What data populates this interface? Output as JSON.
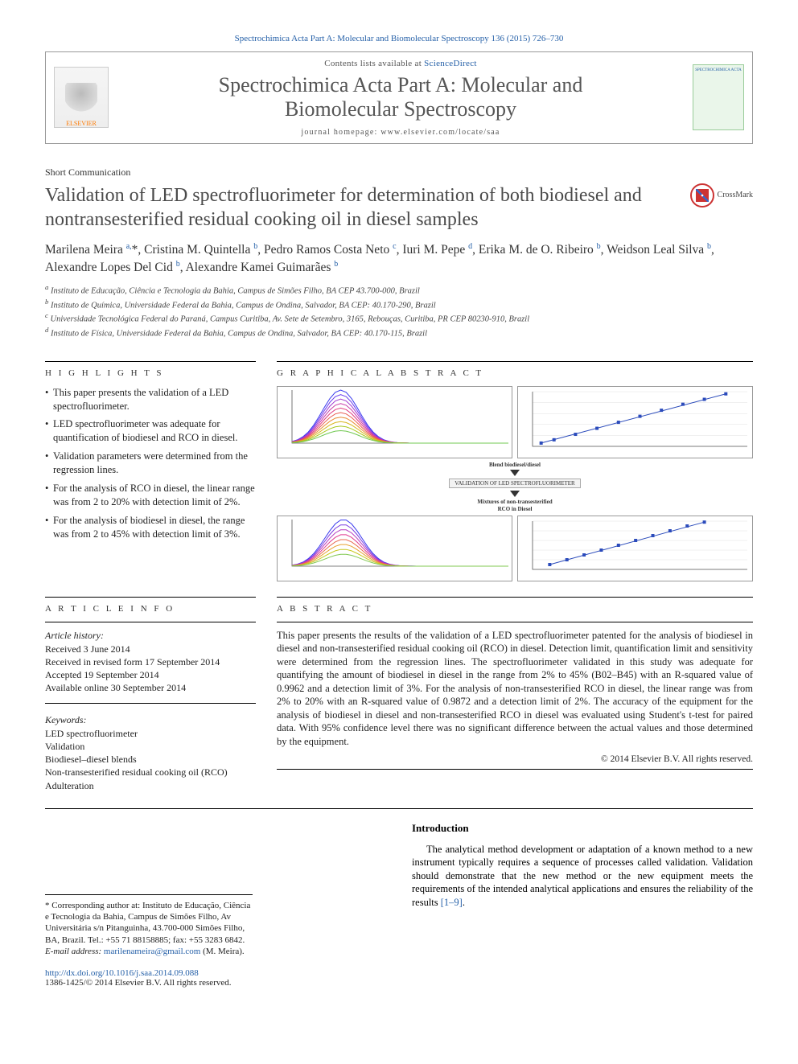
{
  "citation": "Spectrochimica Acta Part A: Molecular and Biomolecular Spectroscopy 136 (2015) 726–730",
  "header": {
    "contents_prefix": "Contents lists available at ",
    "contents_link": "ScienceDirect",
    "journal_line1": "Spectrochimica Acta Part A: Molecular and",
    "journal_line2": "Biomolecular Spectroscopy",
    "homepage": "journal homepage: www.elsevier.com/locate/saa",
    "publisher": "ELSEVIER",
    "cover_text": "SPECTROCHIMICA ACTA"
  },
  "article_type": "Short Communication",
  "title": "Validation of LED spectrofluorimeter for determination of both biodiesel and nontransesterified residual cooking oil in diesel samples",
  "crossmark_label": "CrossMark",
  "authors_html": "Marilena Meira <sup>a,</sup>*, Cristina M. Quintella <sup>b</sup>, Pedro Ramos Costa Neto <sup>c</sup>, Iuri M. Pepe <sup>d</sup>, Erika M. de O. Ribeiro <sup>b</sup>, Weidson Leal Silva <sup>b</sup>, Alexandre Lopes Del Cid <sup>b</sup>, Alexandre Kamei Guimarães <sup>b</sup>",
  "affiliations": [
    "a Instituto de Educação, Ciência e Tecnologia da Bahia, Campus de Simões Filho, BA CEP 43.700-000, Brazil",
    "b Instituto de Química, Universidade Federal da Bahia, Campus de Ondina, Salvador, BA CEP: 40.170-290, Brazil",
    "c Universidade Tecnológica Federal do Paraná, Campus Curitiba, Av. Sete de Setembro, 3165, Rebouças, Curitiba, PR CEP 80230-910, Brazil",
    "d Instituto de Física, Universidade Federal da Bahia, Campus de Ondina, Salvador, BA CEP: 40.170-115, Brazil"
  ],
  "headings": {
    "highlights": "H I G H L I G H T S",
    "graphical_abstract": "G R A P H I C A L  A B S T R A C T",
    "article_info": "A R T I C L E  I N F O",
    "abstract": "A B S T R A C T"
  },
  "highlights": [
    "This paper presents the validation of a LED spectrofluorimeter.",
    "LED spectrofluorimeter was adequate for quantification of biodiesel and RCO in diesel.",
    "Validation parameters were determined from the regression lines.",
    "For the analysis of RCO in diesel, the linear range was from 2 to 20% with detection limit of 2%.",
    "For the analysis of biodiesel in diesel, the range was from 2 to 45% with detection limit of 3%."
  ],
  "graphical_abstract": {
    "panels": [
      {
        "type": "spectrum",
        "title": "",
        "x_range": [
          350,
          750
        ],
        "y_range": [
          0,
          1.0
        ],
        "peak_x": 440,
        "curves_count": 10,
        "palette": [
          "#3a3aee",
          "#6a3aee",
          "#a23ad0",
          "#c83aa8",
          "#e03a80",
          "#e85a50",
          "#e88a30",
          "#d8b820",
          "#a8c820",
          "#70c850"
        ],
        "bg": "#ffffff",
        "axis_color": "#555555"
      },
      {
        "type": "linear",
        "title": "",
        "x_range": [
          0,
          50
        ],
        "y_range": [
          0,
          1.0
        ],
        "points": [
          [
            2,
            0.06
          ],
          [
            5,
            0.12
          ],
          [
            10,
            0.22
          ],
          [
            15,
            0.33
          ],
          [
            20,
            0.44
          ],
          [
            25,
            0.55
          ],
          [
            30,
            0.66
          ],
          [
            35,
            0.77
          ],
          [
            40,
            0.86
          ],
          [
            45,
            0.96
          ]
        ],
        "marker": "square",
        "marker_color": "#2b4bbb",
        "line_color": "#2b4bbb",
        "grid_color": "#e0e0e0",
        "bg": "#ffffff"
      },
      {
        "type": "spectrum",
        "title": "",
        "x_range": [
          350,
          750
        ],
        "y_range": [
          0,
          1.0
        ],
        "peak_x": 445,
        "curves_count": 8,
        "palette": [
          "#3a3aee",
          "#7a3ae0",
          "#b83ac0",
          "#e03a90",
          "#e86a50",
          "#e8a030",
          "#c8c820",
          "#80c850"
        ],
        "bg": "#ffffff",
        "axis_color": "#555555"
      },
      {
        "type": "linear",
        "title": "",
        "x_range": [
          0,
          25
        ],
        "y_range": [
          0,
          1.0
        ],
        "points": [
          [
            2,
            0.1
          ],
          [
            4,
            0.2
          ],
          [
            6,
            0.3
          ],
          [
            8,
            0.4
          ],
          [
            10,
            0.5
          ],
          [
            12,
            0.6
          ],
          [
            14,
            0.7
          ],
          [
            16,
            0.8
          ],
          [
            18,
            0.9
          ],
          [
            20,
            0.98
          ]
        ],
        "marker": "square",
        "marker_color": "#2b4bbb",
        "line_color": "#2b4bbb",
        "grid_color": "#e0e0e0",
        "bg": "#ffffff"
      }
    ],
    "middle_labels": {
      "top": "Blend biodiesel/diesel",
      "box": "VALIDATION OF LED SPECTROFLUORIMETER",
      "bottom_line1": "Mixtures of non-transesterified",
      "bottom_line2": "RCO in Diesel"
    }
  },
  "article_info": {
    "history_label": "Article history:",
    "dates": [
      "Received 3 June 2014",
      "Received in revised form 17 September 2014",
      "Accepted 19 September 2014",
      "Available online 30 September 2014"
    ],
    "keywords_label": "Keywords:",
    "keywords": [
      "LED spectrofluorimeter",
      "Validation",
      "Biodiesel–diesel blends",
      "Non-transesterified residual cooking oil (RCO)",
      "Adulteration"
    ]
  },
  "abstract": "This paper presents the results of the validation of a LED spectrofluorimeter patented for the analysis of biodiesel in diesel and non-transesterified residual cooking oil (RCO) in diesel. Detection limit, quantification limit and sensitivity were determined from the regression lines. The spectrofluorimeter validated in this study was adequate for quantifying the amount of biodiesel in diesel in the range from 2% to 45% (B02–B45) with an R-squared value of 0.9962 and a detection limit of 3%. For the analysis of non-transesterified RCO in diesel, the linear range was from 2% to 20% with an R-squared value of 0.9872 and a detection limit of 2%. The accuracy of the equipment for the analysis of biodiesel in diesel and non-transesterified RCO in diesel was evaluated using Student's t-test for paired data. With 95% confidence level there was no significant difference between the actual values and those determined by the equipment.",
  "copyright": "© 2014 Elsevier B.V. All rights reserved.",
  "intro": {
    "heading": "Introduction",
    "paragraph": "The analytical method development or adaptation of a known method to a new instrument typically requires a sequence of processes called validation. Validation should demonstrate that the new method or the new equipment meets the requirements of the intended analytical applications and ensures the reliability of the results ",
    "ref": "[1–9]"
  },
  "footnote": {
    "corresponding": "* Corresponding author at: Instituto de Educação, Ciência e Tecnologia da Bahia, Campus de Simões Filho, Av Universitária s/n Pitanguinha, 43.700-000 Simões Filho, BA, Brazil. Tel.: +55 71 88158885; fax: +55 3283 6842.",
    "email_label": "E-mail address: ",
    "email": "marilenameira@gmail.com",
    "email_owner": " (M. Meira)."
  },
  "doi": {
    "url": "http://dx.doi.org/10.1016/j.saa.2014.09.088",
    "issn_line": "1386-1425/© 2014 Elsevier B.V. All rights reserved."
  },
  "colors": {
    "link": "#2560a8",
    "text": "#222222",
    "rule": "#000000",
    "elsevier_orange": "#ff7a00"
  }
}
